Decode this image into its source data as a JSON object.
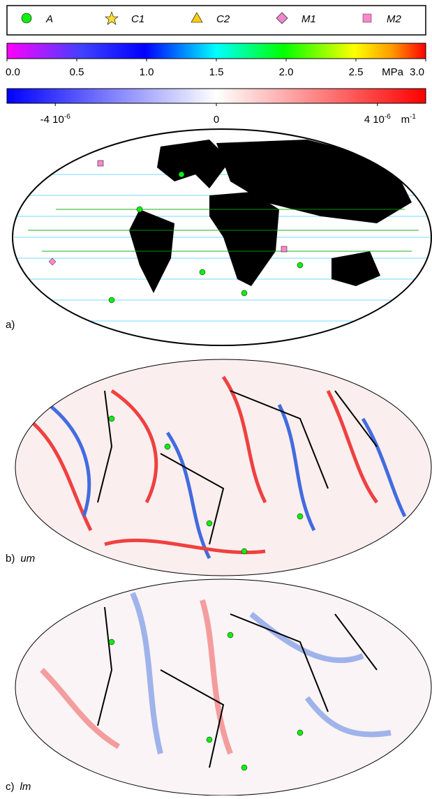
{
  "legend": {
    "items": [
      "A",
      "C1",
      "C2",
      "M1",
      "M2"
    ]
  },
  "colorbar_stress": {
    "min": 0,
    "max": 3,
    "unit": "MPa",
    "ticks": [
      {
        "value": 0,
        "label": "0.0"
      },
      {
        "value": 0.5,
        "label": "0.5"
      },
      {
        "value": 1,
        "label": "1.0"
      },
      {
        "value": 1.5,
        "label": "1.5"
      },
      {
        "value": 2,
        "label": "2.0"
      },
      {
        "value": 2.5,
        "label": "2.5"
      },
      {
        "value": 3,
        "label": "3.0"
      }
    ]
  },
  "colorbar_gradient": {
    "min": -5.2e-06,
    "max": 5.2e-06,
    "unit": "m",
    "unit_exponent": "-1",
    "ticks": [
      {
        "value": -4e-06,
        "mantissa": "-4 10",
        "exponent": "-6"
      },
      {
        "value": 0,
        "mantissa": "0",
        "exponent": ""
      },
      {
        "value": 4e-06,
        "mantissa": "4 10",
        "exponent": "-6"
      }
    ]
  },
  "panels": [
    {
      "label": "a)",
      "layer": ""
    },
    {
      "label": "b)",
      "layer": "um"
    },
    {
      "label": "c)",
      "layer": "lm"
    }
  ]
}
